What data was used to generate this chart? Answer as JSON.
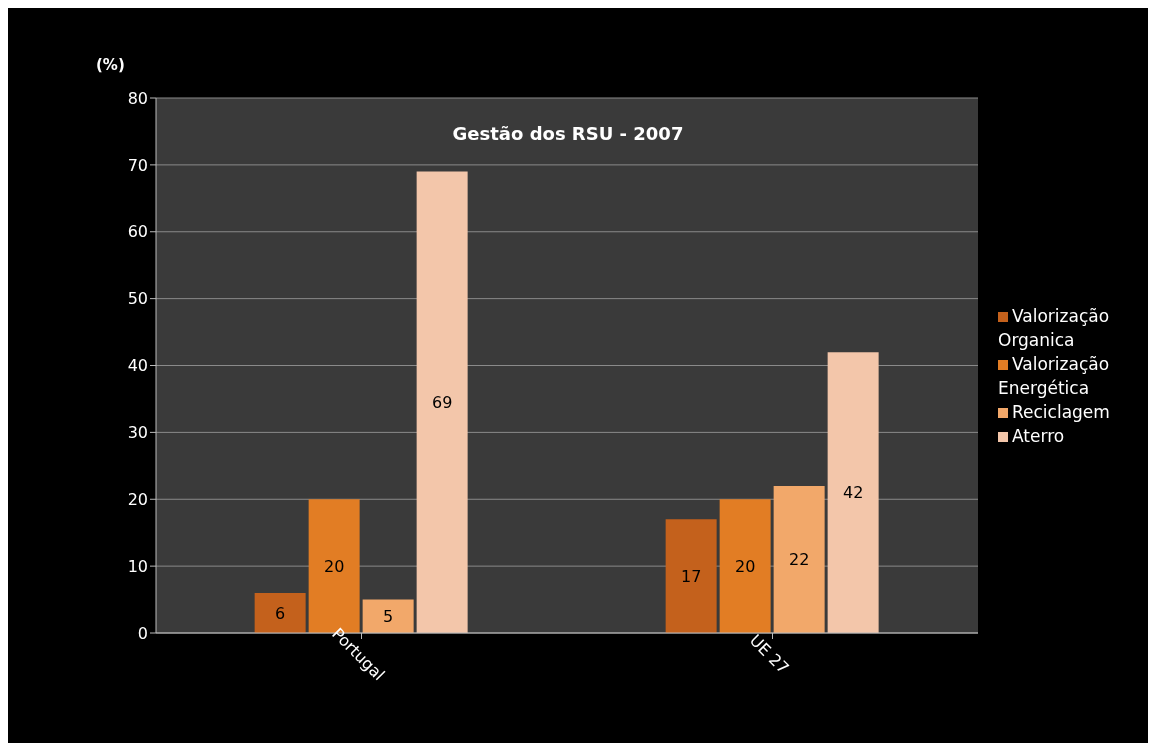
{
  "chart_data": {
    "type": "bar",
    "title": "Gestão dos RSU - 2007",
    "ylabel": "(%)",
    "categories": [
      "Portugal",
      "UE 27"
    ],
    "series": [
      {
        "name": "Valorização Organica",
        "color": "#c4611c",
        "values": [
          6,
          17
        ]
      },
      {
        "name": "Valorização Energética",
        "color": "#e27d24",
        "values": [
          20,
          20
        ]
      },
      {
        "name": "Reciclagem",
        "color": "#f2a86a",
        "values": [
          5,
          22
        ]
      },
      {
        "name": "Aterro",
        "color": "#f3c6aa",
        "values": [
          69,
          42
        ]
      }
    ],
    "ylim": [
      0,
      80
    ],
    "yticks": [
      0,
      10,
      20,
      30,
      40,
      50,
      60,
      70,
      80
    ],
    "grid": "y",
    "legend": "right",
    "data_labels": true
  }
}
